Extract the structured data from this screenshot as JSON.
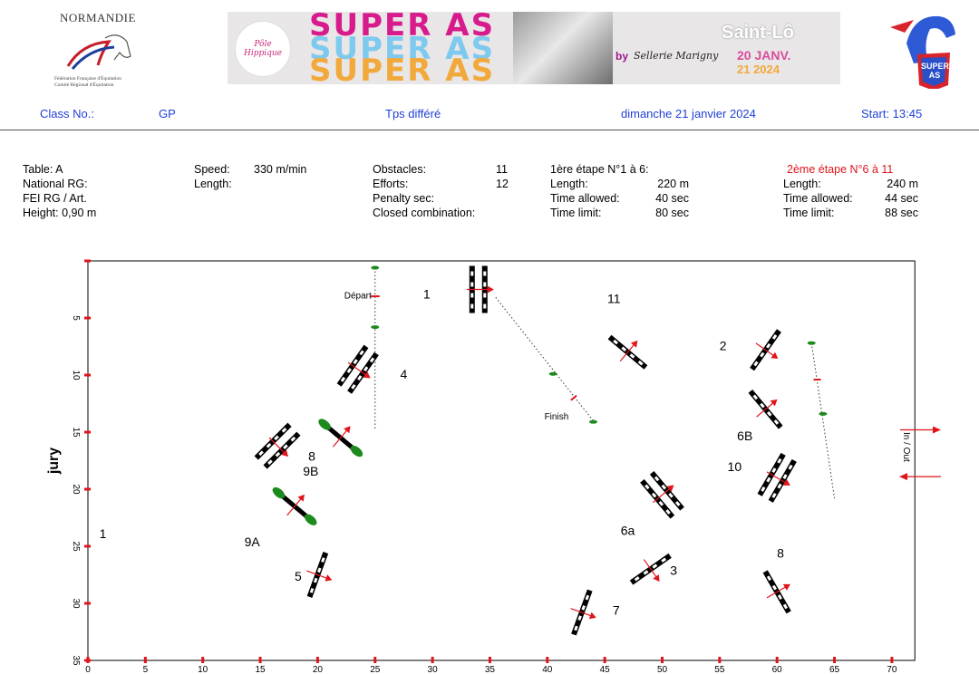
{
  "header": {
    "logo_left": {
      "title": "NORMANDIE",
      "line1": "Fédération Française d'Équitation",
      "line2": "Comité Régional d'Équitation"
    },
    "banner": {
      "word": "SUPER AS",
      "seal": "Pôle Hippique",
      "by": "by",
      "sponsor": "Sellerie Marigny",
      "city": "Saint-Lô",
      "date1": "20 JANV.",
      "date2": "21 2024"
    },
    "logo_right": {
      "text": "SUPER AS"
    }
  },
  "class_bar": {
    "class_label": "Class No.:",
    "class_value": "GP",
    "mode": "Tps différé",
    "date": "dimanche 21 janvier 2024",
    "start": "Start: 13:45"
  },
  "info": {
    "col1": [
      "Table: A",
      "National RG:",
      "FEI RG / Art.",
      "Height: 0,90 m"
    ],
    "speed_label": "Speed:",
    "speed_value": "330 m/min",
    "length_label": "Length:",
    "obstacles_label": "Obstacles:",
    "obstacles_value": "11",
    "efforts_label": "Efforts:",
    "efforts_value": "12",
    "penalty_label": "Penalty sec:",
    "closed_label": "Closed combination:",
    "stage1": {
      "title": "1ère étape N°1 à 6:",
      "length_label": "Length:",
      "length_value": "220 m",
      "allowed_label": "Time allowed:",
      "allowed_value": "40 sec",
      "limit_label": "Time limit:",
      "limit_value": "80 sec"
    },
    "stage2": {
      "title": "2ème étape N°6 à 11",
      "length_label": "Length:",
      "length_value": "240 m",
      "allowed_label": "Time allowed:",
      "allowed_value": "44 sec",
      "limit_label": "Time limit:",
      "limit_value": "88 sec"
    }
  },
  "colors": {
    "accent_blue": "#1f3fd8",
    "red": "#e0141b",
    "green": "#1c8a1c"
  },
  "course_map": {
    "jury_label": "jury",
    "in_out_label": "In / Out",
    "x_ticks": [
      "0",
      "5",
      "10",
      "15",
      "20",
      "25",
      "30",
      "35",
      "40",
      "45",
      "50",
      "55",
      "60",
      "65",
      "70"
    ],
    "y_ticks": [
      "5",
      "10",
      "15",
      "20",
      "25",
      "30",
      "35"
    ],
    "x_range": [
      0,
      72
    ],
    "y_range": [
      0,
      35
    ],
    "start_label": "Départ",
    "finish_label": "Finish",
    "fences": [
      {
        "label": "1",
        "x": 34,
        "y": 2.5,
        "angle": 0,
        "type": "oxer"
      },
      {
        "label": "2",
        "x": 59,
        "y": 7.8,
        "angle": 35,
        "type": "vertical"
      },
      {
        "label": "3",
        "x": 49,
        "y": 27,
        "angle": 55,
        "type": "vertical"
      },
      {
        "label": "4",
        "x": 23.5,
        "y": 9.5,
        "angle": 35,
        "type": "oxer"
      },
      {
        "label": "5",
        "x": 20,
        "y": 27.5,
        "angle": 20,
        "type": "vertical"
      },
      {
        "label": "6a",
        "x": 50,
        "y": 20.5,
        "angle": -40,
        "type": "oxer"
      },
      {
        "label": "6B",
        "x": 59,
        "y": 13,
        "angle": -40,
        "type": "vertical"
      },
      {
        "label": "7",
        "x": 43,
        "y": 30.8,
        "angle": 20,
        "type": "vertical"
      },
      {
        "label": "8",
        "x": 16.5,
        "y": 16.2,
        "angle": 45,
        "type": "oxer"
      },
      {
        "label": "8",
        "x": 60,
        "y": 29,
        "angle": -30,
        "type": "vertical"
      },
      {
        "label": "9A",
        "x": 18,
        "y": 21.5,
        "angle": -50,
        "type": "vertical"
      },
      {
        "label": "9B",
        "x": 22,
        "y": 15.5,
        "angle": -50,
        "type": "vertical"
      },
      {
        "label": "10",
        "x": 60,
        "y": 19,
        "angle": 30,
        "type": "oxer"
      },
      {
        "label": "11",
        "x": 47,
        "y": 8,
        "angle": -50,
        "type": "vertical"
      }
    ],
    "extra_number": "1"
  }
}
